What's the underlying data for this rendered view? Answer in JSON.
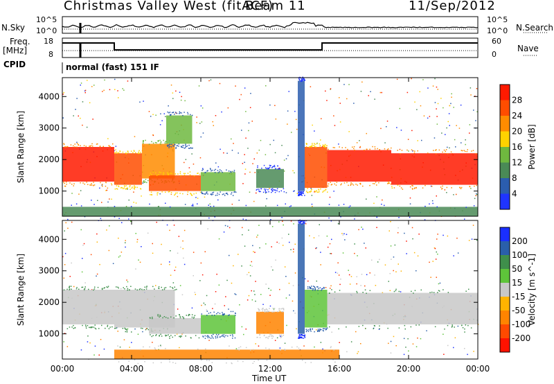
{
  "header": {
    "radar_title": "Christmas Valley West (fitACF)",
    "beam": "Beam 11",
    "date": "11/Sep/2012"
  },
  "status_panels": {
    "nsky_label": "N.Sky",
    "nsearch_label": "N.Search",
    "freq_label": "Freq.",
    "freq_unit": "[MHz]",
    "nave_label": "Nave",
    "cpid_label": "CPID",
    "cpid_value": "normal (fast) 151 IF",
    "noise_ticks_left": [
      "10^5",
      "10^0"
    ],
    "noise_ticks_right": [
      "10^5",
      "10^0"
    ],
    "freq_ticks_left": [
      "18",
      "8"
    ],
    "nave_ticks_right": [
      "60",
      "0"
    ]
  },
  "colors": {
    "power": [
      "#1f34ff",
      "#2b5dae",
      "#4a8a56",
      "#6fb83f",
      "#ffd200",
      "#ff8c00",
      "#ff4d00",
      "#ff1a00"
    ],
    "velocity": [
      "#1a2fff",
      "#2a5faa",
      "#3f8f4b",
      "#5ec43a",
      "#c8c8c8",
      "#ffb400",
      "#ff8400",
      "#ff4a00",
      "#ff1200"
    ]
  },
  "chart_data": [
    {
      "type": "heatmap",
      "title": "Power",
      "ylabel": "Slant Range [km]",
      "xlabel": "Time UT",
      "x_ticks": [
        "00:00",
        "04:00",
        "08:00",
        "12:00",
        "16:00",
        "20:00",
        "00:00"
      ],
      "y_ticks": [
        "1000",
        "2000",
        "3000",
        "4000"
      ],
      "ylim": [
        200,
        4600
      ],
      "xlim_hours": [
        0,
        24
      ],
      "colorbar_label": "Power [dB]",
      "colorbar_ticks": [
        "4",
        "8",
        "12",
        "16",
        "20",
        "24",
        "28"
      ],
      "regions": [
        {
          "t_start": 0.0,
          "t_end": 3.0,
          "range_low": 1300,
          "range_high": 2400,
          "level": 7
        },
        {
          "t_start": 3.0,
          "t_end": 4.6,
          "range_low": 1200,
          "range_high": 2200,
          "level": 6
        },
        {
          "t_start": 4.6,
          "t_end": 6.5,
          "range_low": 1400,
          "range_high": 2500,
          "level": 5
        },
        {
          "t_start": 6.0,
          "t_end": 7.5,
          "range_low": 2500,
          "range_high": 3400,
          "level": 3
        },
        {
          "t_start": 5.0,
          "t_end": 8.0,
          "range_low": 1000,
          "range_high": 1500,
          "level": 6
        },
        {
          "t_start": 8.0,
          "t_end": 10.0,
          "range_low": 1000,
          "range_high": 1600,
          "level": 3
        },
        {
          "t_start": 11.2,
          "t_end": 12.8,
          "range_low": 1100,
          "range_high": 1700,
          "level": 2
        },
        {
          "t_start": 13.6,
          "t_end": 14.0,
          "range_low": 1000,
          "range_high": 4500,
          "level": 1
        },
        {
          "t_start": 14.0,
          "t_end": 15.3,
          "range_low": 1100,
          "range_high": 2400,
          "level": 6
        },
        {
          "t_start": 15.3,
          "t_end": 19.0,
          "range_low": 1300,
          "range_high": 2300,
          "level": 7
        },
        {
          "t_start": 19.0,
          "t_end": 24.0,
          "range_low": 1200,
          "range_high": 2200,
          "level": 7
        },
        {
          "t_start": 0.0,
          "t_end": 24.0,
          "range_low": 200,
          "range_high": 500,
          "level": 2
        }
      ]
    },
    {
      "type": "heatmap",
      "title": "Velocity",
      "ylabel": "Slant Range [km]",
      "xlabel": "Time UT",
      "x_ticks": [
        "00:00",
        "04:00",
        "08:00",
        "12:00",
        "16:00",
        "20:00",
        "00:00"
      ],
      "y_ticks": [
        "1000",
        "2000",
        "3000",
        "4000"
      ],
      "ylim": [
        200,
        4600
      ],
      "xlim_hours": [
        0,
        24
      ],
      "colorbar_label": "Velocity [m s^-1]",
      "colorbar_ticks": [
        "200",
        "100",
        "50",
        "15",
        "-15",
        "-50",
        "-100",
        "-200"
      ],
      "regions": [
        {
          "t_start": 0.0,
          "t_end": 3.0,
          "range_low": 1300,
          "range_high": 2400,
          "level": 4
        },
        {
          "t_start": 3.0,
          "t_end": 6.5,
          "range_low": 1200,
          "range_high": 2400,
          "level": 4
        },
        {
          "t_start": 5.0,
          "t_end": 8.0,
          "range_low": 1000,
          "range_high": 1500,
          "level": 4
        },
        {
          "t_start": 8.0,
          "t_end": 10.0,
          "range_low": 1000,
          "range_high": 1600,
          "level": 3
        },
        {
          "t_start": 11.2,
          "t_end": 12.8,
          "range_low": 1000,
          "range_high": 1700,
          "level": 6
        },
        {
          "t_start": 13.6,
          "t_end": 14.0,
          "range_low": 1000,
          "range_high": 4500,
          "level": 1
        },
        {
          "t_start": 14.0,
          "t_end": 15.3,
          "range_low": 1200,
          "range_high": 2400,
          "level": 3
        },
        {
          "t_start": 15.3,
          "t_end": 24.0,
          "range_low": 1300,
          "range_high": 2300,
          "level": 4
        },
        {
          "t_start": 3.0,
          "t_end": 16.0,
          "range_low": 200,
          "range_high": 500,
          "level": 6
        }
      ]
    }
  ]
}
